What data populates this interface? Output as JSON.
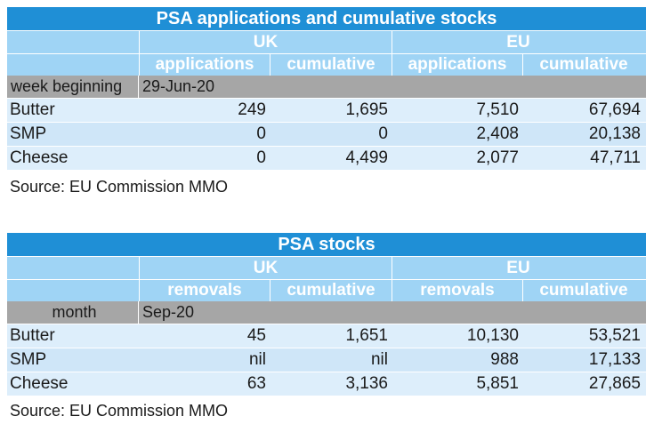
{
  "table1": {
    "title": "PSA applications and cumulative stocks",
    "groups": [
      "UK",
      "EU"
    ],
    "subheaders": [
      "applications",
      "cumulative",
      "applications",
      "cumulative"
    ],
    "meta_label": "week beginning",
    "meta_value": "29-Jun-20",
    "rows": [
      {
        "name": "Butter",
        "values": [
          "249",
          "1,695",
          "7,510",
          "67,694"
        ]
      },
      {
        "name": "SMP",
        "values": [
          "0",
          "0",
          "2,408",
          "20,138"
        ]
      },
      {
        "name": "Cheese",
        "values": [
          "0",
          "4,499",
          "2,077",
          "47,711"
        ]
      }
    ],
    "source": "Source: EU Commission MMO"
  },
  "table2": {
    "title": "PSA stocks",
    "groups": [
      "UK",
      "EU"
    ],
    "subheaders": [
      "removals",
      "cumulative",
      "removals",
      "cumulative"
    ],
    "meta_label": "month",
    "meta_value": "Sep-20",
    "rows": [
      {
        "name": "Butter",
        "values": [
          "45",
          "1,651",
          "10,130",
          "53,521"
        ]
      },
      {
        "name": "SMP",
        "values": [
          "nil",
          "nil",
          "988",
          "17,133"
        ]
      },
      {
        "name": "Cheese",
        "values": [
          "63",
          "3,136",
          "5,851",
          "27,865"
        ]
      }
    ],
    "source": "Source: EU Commission MMO"
  },
  "colors": {
    "title_bg": "#1f8fd6",
    "header_bg": "#9fd4f5",
    "meta_bg": "#a6a6a6",
    "row_bg_light": "#ddeefb",
    "row_bg_dark": "#cfe6f8"
  }
}
